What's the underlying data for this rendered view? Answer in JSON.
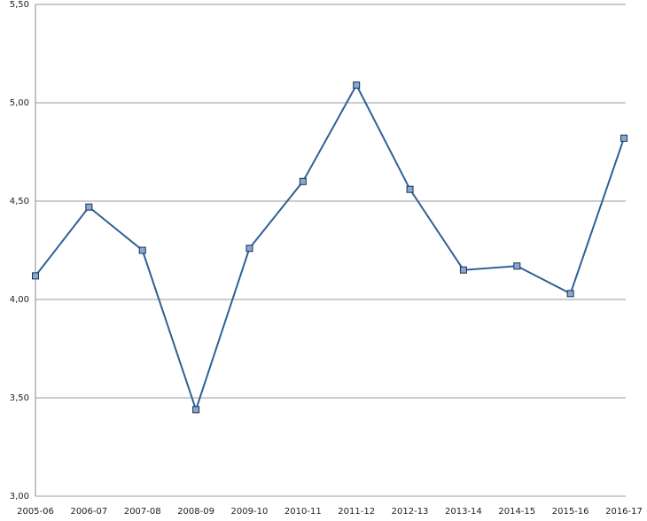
{
  "chart_data": {
    "type": "line",
    "categories": [
      "2005-06",
      "2006-07",
      "2007-08",
      "2008-09",
      "2009-10",
      "2010-11",
      "2011-12",
      "2012-13",
      "2013-14",
      "2014-15",
      "2015-16",
      "2016-17"
    ],
    "values": [
      4.12,
      4.47,
      4.25,
      3.44,
      4.26,
      4.6,
      5.09,
      4.56,
      4.15,
      4.17,
      4.03,
      4.82
    ],
    "color": "#2f6195",
    "marker_color": "#86a8d6",
    "ylim": [
      3,
      5.5
    ],
    "yticks": [
      {
        "value": 3,
        "label": "3,00"
      },
      {
        "value": 3.5,
        "label": "3,50"
      },
      {
        "value": 4,
        "label": "4,00"
      },
      {
        "value": 4.5,
        "label": "4,50"
      },
      {
        "value": 5,
        "label": "5,00"
      },
      {
        "value": 5.5,
        "label": "5,50"
      }
    ],
    "grid": true
  }
}
